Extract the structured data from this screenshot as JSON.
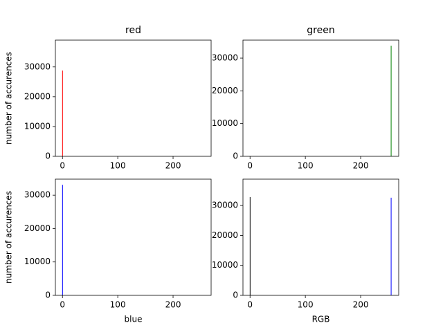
{
  "chart_data": [
    {
      "type": "bar",
      "title": "red",
      "ylabel": "number of accurences",
      "series": [
        {
          "color": "#ff0000",
          "x": [
            0
          ],
          "values": [
            28800
          ]
        }
      ],
      "xlim": [
        -12.8,
        268.8
      ],
      "xticks": [
        0,
        100,
        200
      ],
      "ylim": [
        0,
        39000
      ],
      "yticks": [
        0,
        10000,
        20000,
        30000
      ]
    },
    {
      "type": "bar",
      "title": "green",
      "series": [
        {
          "color": "#008000",
          "x": [
            255
          ],
          "values": [
            33800
          ]
        }
      ],
      "xlim": [
        -12.8,
        268.8
      ],
      "xticks": [
        0,
        100,
        200
      ],
      "ylim": [
        0,
        35500
      ],
      "yticks": [
        0,
        10000,
        20000,
        30000
      ]
    },
    {
      "type": "bar",
      "xlabel": "blue",
      "ylabel": "number of accurences",
      "series": [
        {
          "color": "#0000ff",
          "x": [
            0
          ],
          "values": [
            33100
          ]
        }
      ],
      "xlim": [
        -12.8,
        268.8
      ],
      "xticks": [
        0,
        100,
        200
      ],
      "ylim": [
        0,
        34800
      ],
      "yticks": [
        0,
        10000,
        20000,
        30000
      ]
    },
    {
      "type": "bar",
      "xlabel": "RGB",
      "series": [
        {
          "color": "#000000",
          "x": [
            0
          ],
          "values": [
            32800
          ]
        },
        {
          "color": "#0000ff",
          "x": [
            255
          ],
          "values": [
            32600
          ]
        }
      ],
      "xlim": [
        -12.8,
        268.8
      ],
      "xticks": [
        0,
        100,
        200
      ],
      "ylim": [
        0,
        38800
      ],
      "yticks": [
        0,
        10000,
        20000,
        30000
      ]
    }
  ]
}
